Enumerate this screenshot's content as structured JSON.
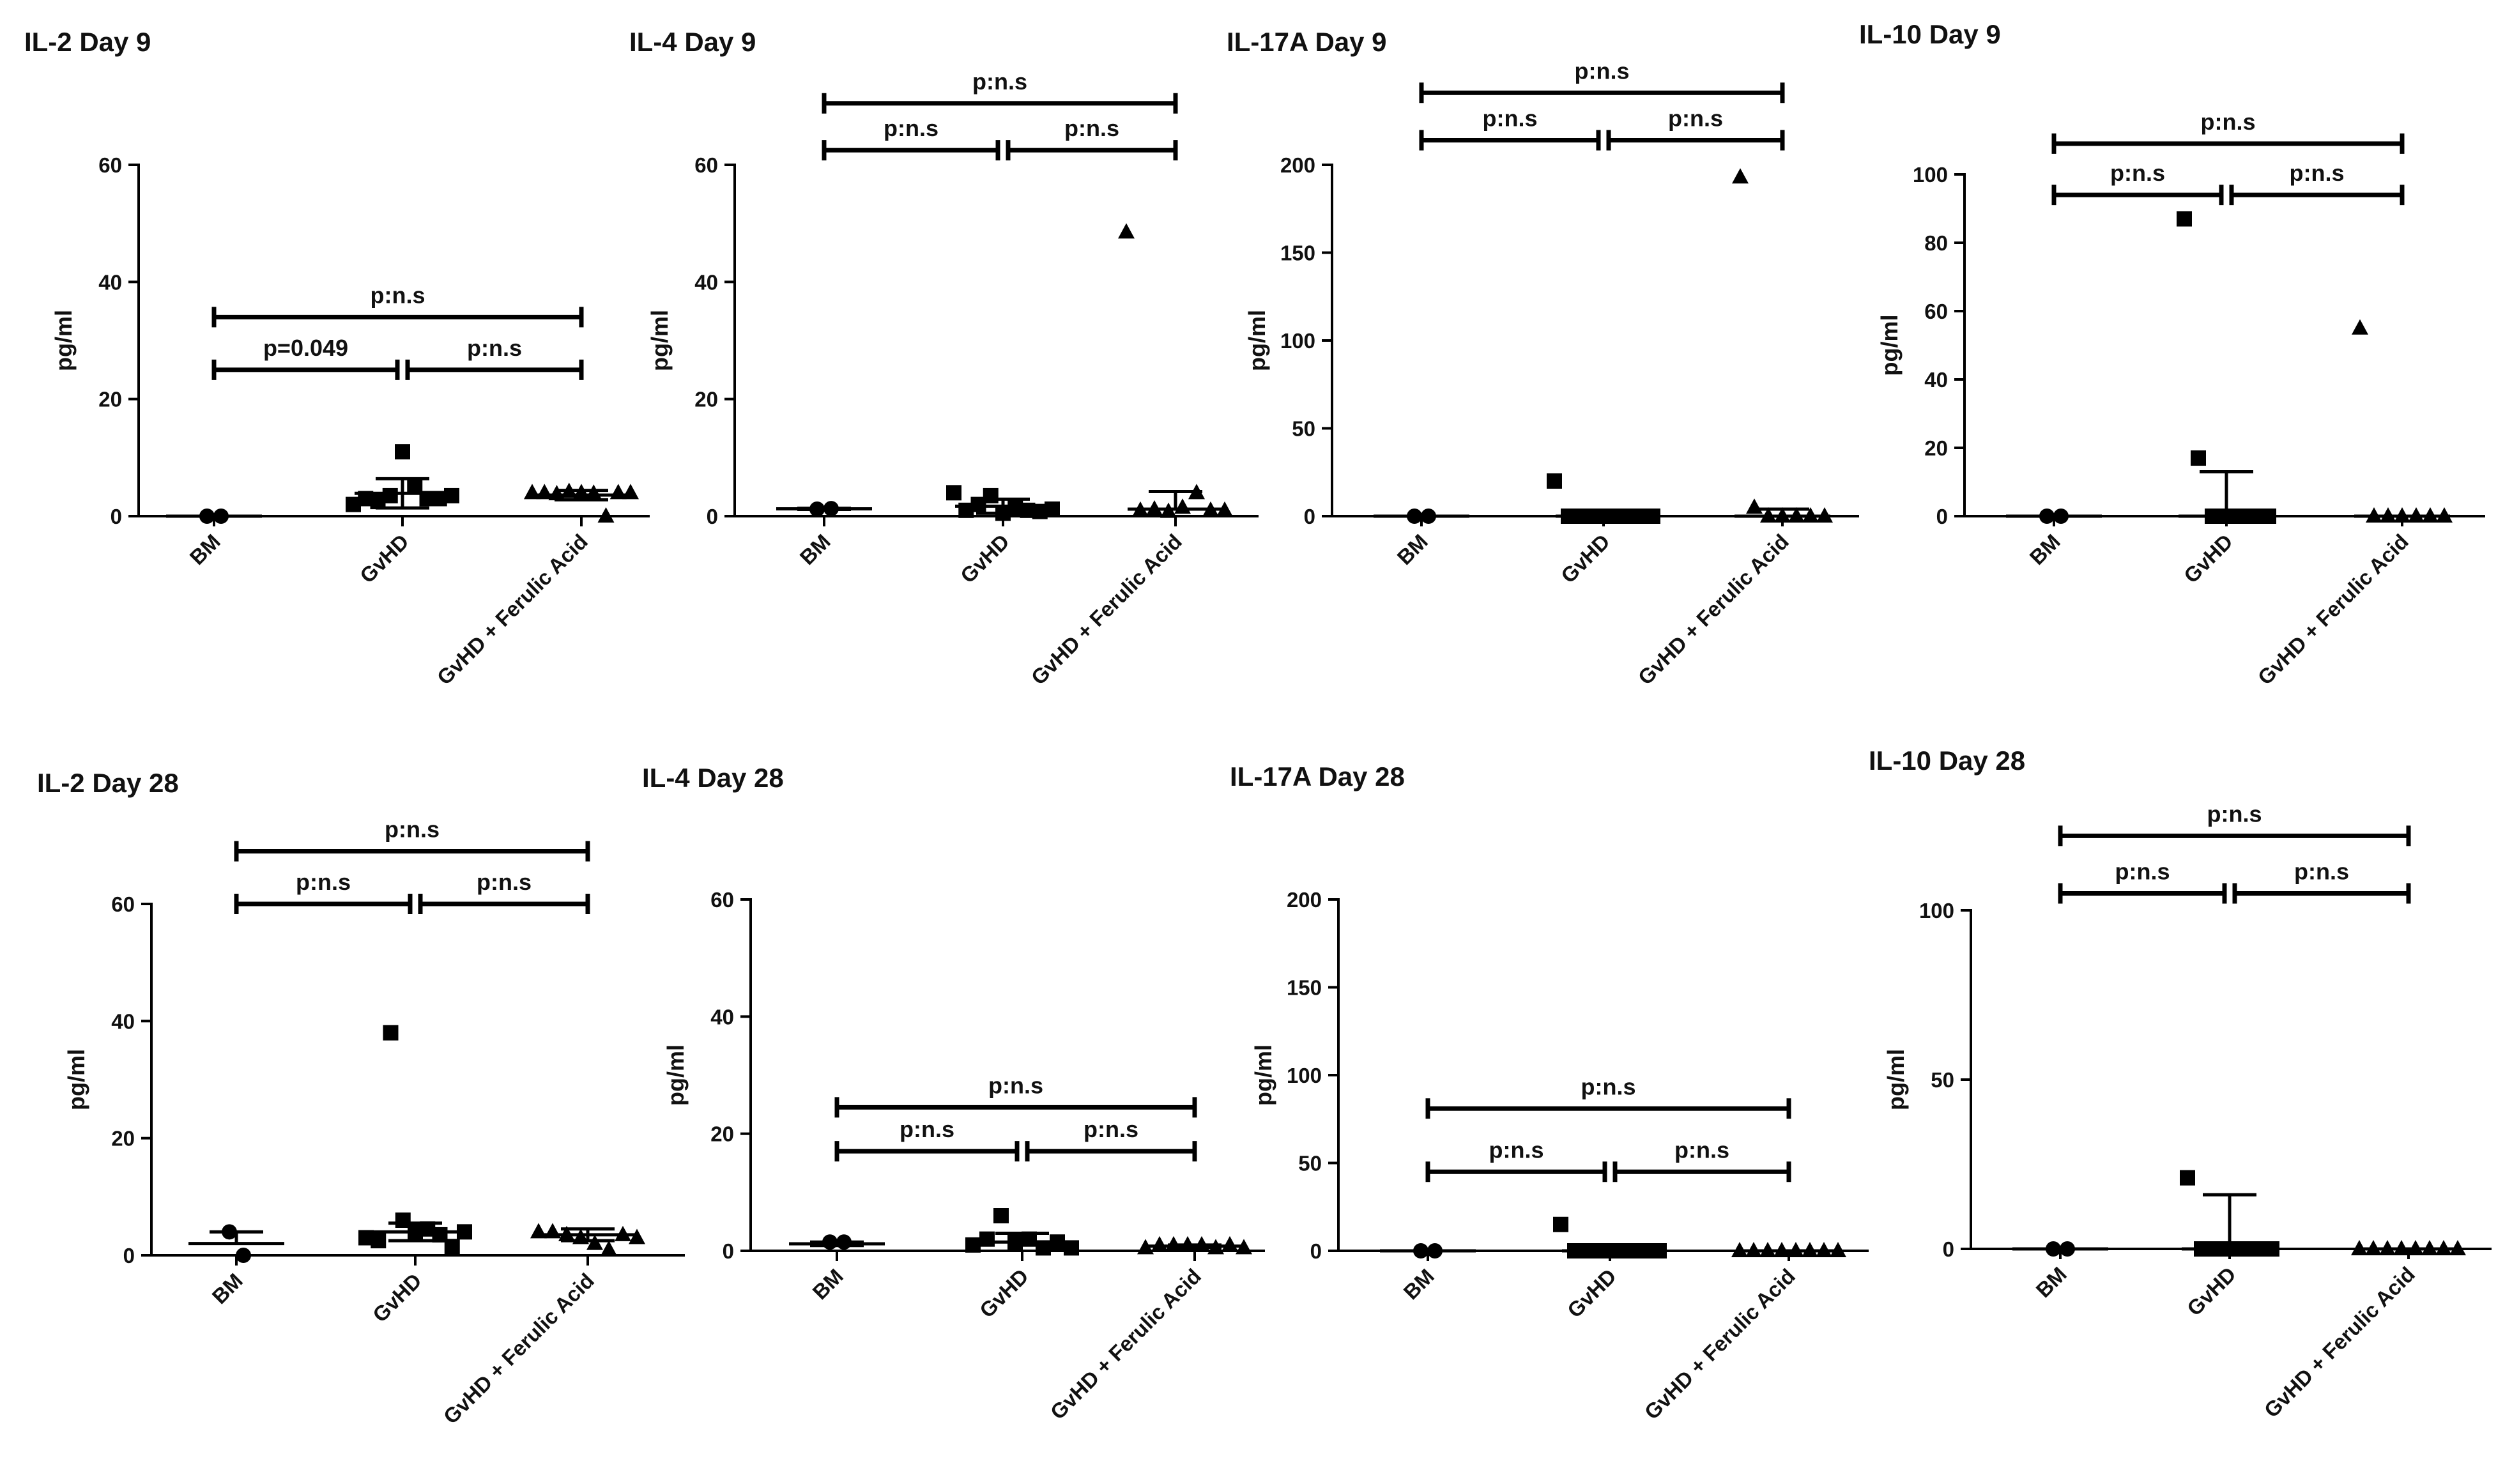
{
  "chart_data": [
    {
      "type": "scatter",
      "title": "IL-2 Day 9",
      "ylabel": "pg/ml",
      "ylim": [
        0,
        60
      ],
      "yticks": [
        0,
        20,
        40,
        60
      ],
      "categories": [
        "BM",
        "GvHD",
        "GvHD + Ferulic Acid"
      ],
      "series": [
        {
          "name": "BM",
          "marker": "circle",
          "values": [
            0,
            0
          ],
          "mean": 0,
          "sd": 0
        },
        {
          "name": "GvHD",
          "marker": "square",
          "values": [
            2,
            3,
            2.5,
            3.5,
            11,
            5,
            3,
            3,
            3.5
          ],
          "mean": 3.9,
          "sd": 2.5
        },
        {
          "name": "GvHD + Ferulic Acid",
          "marker": "triangle",
          "values": [
            4,
            4,
            3.8,
            4.2,
            4,
            3.9,
            0,
            4,
            4
          ],
          "mean": 3.6,
          "sd": 0.8
        }
      ],
      "comparisons": [
        {
          "label": "p=0.049",
          "from": "BM",
          "to": "GvHD",
          "y": 25
        },
        {
          "label": "p:n.s",
          "from": "GvHD",
          "to": "GvHD + Ferulic Acid",
          "y": 25
        },
        {
          "label": "p:n.s",
          "from": "BM",
          "to": "GvHD + Ferulic Acid",
          "y": 34
        }
      ]
    },
    {
      "type": "scatter",
      "title": "IL-4 Day 9",
      "ylabel": "pg/ml",
      "ylim": [
        0,
        60
      ],
      "yticks": [
        0,
        20,
        40,
        60
      ],
      "categories": [
        "BM",
        "GvHD",
        "GvHD + Ferulic Acid"
      ],
      "series": [
        {
          "name": "BM",
          "marker": "circle",
          "values": [
            1.2,
            1.3
          ],
          "mean": 1.25,
          "sd": 0.1
        },
        {
          "name": "GvHD",
          "marker": "square",
          "values": [
            4,
            1,
            2,
            3.5,
            0.5,
            1.5,
            1,
            0.8,
            1.2
          ],
          "mean": 1.7,
          "sd": 1.2
        },
        {
          "name": "GvHD + Ferulic Acid",
          "marker": "triangle",
          "values": [
            48.5,
            1,
            1.2,
            0.8,
            1.5,
            4,
            1,
            1
          ],
          "mean": 1.2,
          "sd": 3.0
        }
      ],
      "comparisons": [
        {
          "label": "p:n.s",
          "from": "BM",
          "to": "GvHD",
          "y": 62.5
        },
        {
          "label": "p:n.s",
          "from": "GvHD",
          "to": "GvHD + Ferulic Acid",
          "y": 62.5
        },
        {
          "label": "p:n.s",
          "from": "BM",
          "to": "GvHD + Ferulic Acid",
          "y": 70.5
        }
      ]
    },
    {
      "type": "scatter",
      "title": "IL-17A Day 9",
      "ylabel": "pg/ml",
      "ylim": [
        0,
        200
      ],
      "yticks": [
        0,
        50,
        100,
        150,
        200
      ],
      "categories": [
        "BM",
        "GvHD",
        "GvHD + Ferulic Acid"
      ],
      "series": [
        {
          "name": "BM",
          "marker": "circle",
          "values": [
            0,
            0
          ],
          "mean": 0,
          "sd": 0
        },
        {
          "name": "GvHD",
          "marker": "square",
          "values": [
            20,
            0,
            0,
            0,
            0,
            0,
            0,
            0
          ],
          "mean": 0,
          "sd": 0
        },
        {
          "name": "GvHD + Ferulic Acid",
          "marker": "triangle",
          "values": [
            193,
            5,
            0,
            0,
            0,
            0,
            0
          ],
          "mean": 0,
          "sd": 4
        }
      ],
      "comparisons": [
        {
          "label": "p:n.s",
          "from": "BM",
          "to": "GvHD",
          "y": 214
        },
        {
          "label": "p:n.s",
          "from": "GvHD",
          "to": "GvHD + Ferulic Acid",
          "y": 214
        },
        {
          "label": "p:n.s",
          "from": "BM",
          "to": "GvHD + Ferulic Acid",
          "y": 241
        }
      ]
    },
    {
      "type": "scatter",
      "title": "IL-10 Day 9",
      "ylabel": "pg/ml",
      "ylim": [
        0,
        100
      ],
      "yticks": [
        0,
        20,
        40,
        60,
        80,
        100
      ],
      "categories": [
        "BM",
        "GvHD",
        "GvHD + Ferulic Acid"
      ],
      "series": [
        {
          "name": "BM",
          "marker": "circle",
          "values": [
            0,
            0
          ],
          "mean": 0,
          "sd": 0
        },
        {
          "name": "GvHD",
          "marker": "square",
          "values": [
            87,
            17,
            0,
            0,
            0,
            0,
            0
          ],
          "mean": 0,
          "sd": 13
        },
        {
          "name": "GvHD + Ferulic Acid",
          "marker": "triangle",
          "values": [
            55,
            0,
            0,
            0,
            0,
            0,
            0
          ],
          "mean": 0,
          "sd": 0
        }
      ],
      "comparisons": [
        {
          "label": "p:n.s",
          "from": "BM",
          "to": "GvHD",
          "y": 94
        },
        {
          "label": "p:n.s",
          "from": "GvHD",
          "to": "GvHD + Ferulic Acid",
          "y": 94
        },
        {
          "label": "p:n.s",
          "from": "BM",
          "to": "GvHD + Ferulic Acid",
          "y": 109
        }
      ]
    },
    {
      "type": "scatter",
      "title": "IL-2 Day 28",
      "ylabel": "pg/ml",
      "ylim": [
        0,
        60
      ],
      "yticks": [
        0,
        20,
        40,
        60
      ],
      "categories": [
        "BM",
        "GvHD",
        "GvHD + Ferulic Acid"
      ],
      "series": [
        {
          "name": "BM",
          "marker": "circle",
          "values": [
            4,
            0
          ],
          "mean": 2,
          "sd": 2
        },
        {
          "name": "GvHD",
          "marker": "square",
          "values": [
            3,
            2.5,
            38,
            6,
            4,
            4.5,
            3.5,
            1.5,
            4
          ],
          "mean": 4,
          "sd": 1.5
        },
        {
          "name": "GvHD + Ferulic Acid",
          "marker": "triangle",
          "values": [
            4,
            4,
            3.5,
            3,
            2,
            1,
            3.5,
            3
          ],
          "mean": 3.5,
          "sd": 1
        }
      ],
      "comparisons": [
        {
          "label": "p:n.s",
          "from": "BM",
          "to": "GvHD",
          "y": 60
        },
        {
          "label": "p:n.s",
          "from": "GvHD",
          "to": "GvHD + Ferulic Acid",
          "y": 60
        },
        {
          "label": "p:n.s",
          "from": "BM",
          "to": "GvHD + Ferulic Acid",
          "y": 69
        }
      ]
    },
    {
      "type": "scatter",
      "title": "IL-4 Day 28",
      "ylabel": "pg/ml",
      "ylim": [
        0,
        60
      ],
      "yticks": [
        0,
        20,
        40,
        60
      ],
      "categories": [
        "BM",
        "GvHD",
        "GvHD + Ferulic Acid"
      ],
      "series": [
        {
          "name": "BM",
          "marker": "circle",
          "values": [
            1.5,
            1.5
          ],
          "mean": 1.2,
          "sd": 0.3
        },
        {
          "name": "GvHD",
          "marker": "square",
          "values": [
            1,
            2,
            6,
            1.5,
            2,
            0.5,
            1.5,
            0.5
          ],
          "mean": 1.5,
          "sd": 1.5
        },
        {
          "name": "GvHD + Ferulic Acid",
          "marker": "triangle",
          "values": [
            0.5,
            1,
            1,
            1,
            1,
            0.5,
            1,
            0.5
          ],
          "mean": 0.8,
          "sd": 0.2
        }
      ],
      "comparisons": [
        {
          "label": "p:n.s",
          "from": "BM",
          "to": "GvHD",
          "y": 17
        },
        {
          "label": "p:n.s",
          "from": "GvHD",
          "to": "GvHD + Ferulic Acid",
          "y": 17
        },
        {
          "label": "p:n.s",
          "from": "BM",
          "to": "GvHD + Ferulic Acid",
          "y": 24.5
        }
      ]
    },
    {
      "type": "scatter",
      "title": "IL-17A Day 28",
      "ylabel": "pg/ml",
      "ylim": [
        0,
        200
      ],
      "yticks": [
        0,
        50,
        100,
        150,
        200
      ],
      "categories": [
        "BM",
        "GvHD",
        "GvHD + Ferulic Acid"
      ],
      "series": [
        {
          "name": "BM",
          "marker": "circle",
          "values": [
            0,
            0
          ],
          "mean": 0,
          "sd": 0
        },
        {
          "name": "GvHD",
          "marker": "square",
          "values": [
            15,
            0,
            0,
            0,
            0,
            0,
            0,
            0
          ],
          "mean": 0,
          "sd": 0
        },
        {
          "name": "GvHD + Ferulic Acid",
          "marker": "triangle",
          "values": [
            0,
            0,
            0,
            0,
            0,
            0,
            0,
            0
          ],
          "mean": 0,
          "sd": 0
        }
      ],
      "comparisons": [
        {
          "label": "p:n.s",
          "from": "BM",
          "to": "GvHD",
          "y": 45
        },
        {
          "label": "p:n.s",
          "from": "GvHD",
          "to": "GvHD + Ferulic Acid",
          "y": 45
        },
        {
          "label": "p:n.s",
          "from": "BM",
          "to": "GvHD + Ferulic Acid",
          "y": 81
        }
      ]
    },
    {
      "type": "scatter",
      "title": "IL-10 Day 28",
      "ylabel": "pg/ml",
      "ylim": [
        0,
        100
      ],
      "yticks": [
        0,
        50,
        100
      ],
      "categories": [
        "BM",
        "GvHD",
        "GvHD + Ferulic Acid"
      ],
      "series": [
        {
          "name": "BM",
          "marker": "circle",
          "values": [
            0,
            0
          ],
          "mean": 0,
          "sd": 0
        },
        {
          "name": "GvHD",
          "marker": "square",
          "values": [
            21,
            0,
            0,
            0,
            0,
            0,
            0
          ],
          "mean": 0,
          "sd": 16
        },
        {
          "name": "GvHD + Ferulic Acid",
          "marker": "triangle",
          "values": [
            0,
            0,
            0,
            0,
            0,
            0,
            0,
            0
          ],
          "mean": 0,
          "sd": 0
        }
      ],
      "comparisons": [
        {
          "label": "p:n.s",
          "from": "BM",
          "to": "GvHD",
          "y": 105
        },
        {
          "label": "p:n.s",
          "from": "GvHD",
          "to": "GvHD + Ferulic Acid",
          "y": 105
        },
        {
          "label": "p:n.s",
          "from": "BM",
          "to": "GvHD + Ferulic Acid",
          "y": 122
        }
      ]
    }
  ]
}
